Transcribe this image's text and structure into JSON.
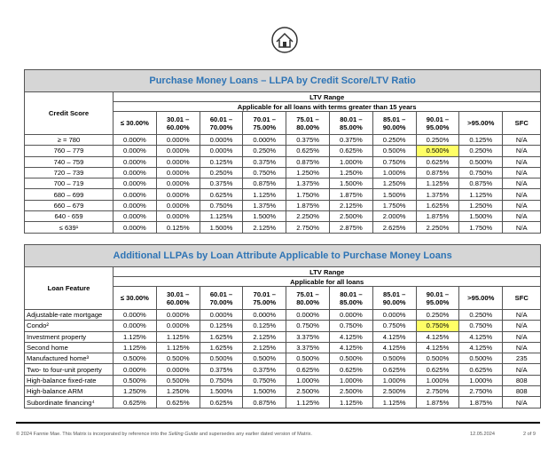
{
  "tables": [
    {
      "title": "Purchase Money Loans – LLPA by Credit Score/LTV Ratio",
      "row_header": "Credit Score",
      "group_header": "LTV Range",
      "group_subheader": "Applicable for all loans with terms greater than 15 years",
      "columns": [
        "≤ 30.00%",
        "30.01 – 60.00%",
        "60.01 – 70.00%",
        "70.01 – 75.00%",
        "75.01 – 80.00%",
        "80.01 – 85.00%",
        "85.01 – 90.00%",
        "90.01 – 95.00%",
        ">95.00%",
        "SFC"
      ],
      "rows": [
        {
          "label": "≥ = 780",
          "cells": [
            "0.000%",
            "0.000%",
            "0.000%",
            "0.000%",
            "0.375%",
            "0.375%",
            "0.250%",
            "0.250%",
            "0.125%",
            "N/A"
          ]
        },
        {
          "label": "760 – 779",
          "cells": [
            "0.000%",
            "0.000%",
            "0.000%",
            "0.250%",
            "0.625%",
            "0.625%",
            "0.500%",
            "0.500%",
            "0.250%",
            "N/A"
          ]
        },
        {
          "label": "740 – 759",
          "cells": [
            "0.000%",
            "0.000%",
            "0.125%",
            "0.375%",
            "0.875%",
            "1.000%",
            "0.750%",
            "0.625%",
            "0.500%",
            "N/A"
          ]
        },
        {
          "label": "720 – 739",
          "cells": [
            "0.000%",
            "0.000%",
            "0.250%",
            "0.750%",
            "1.250%",
            "1.250%",
            "1.000%",
            "0.875%",
            "0.750%",
            "N/A"
          ]
        },
        {
          "label": "700 – 719",
          "cells": [
            "0.000%",
            "0.000%",
            "0.375%",
            "0.875%",
            "1.375%",
            "1.500%",
            "1.250%",
            "1.125%",
            "0.875%",
            "N/A"
          ]
        },
        {
          "label": "680 – 699",
          "cells": [
            "0.000%",
            "0.000%",
            "0.625%",
            "1.125%",
            "1.750%",
            "1.875%",
            "1.500%",
            "1.375%",
            "1.125%",
            "N/A"
          ]
        },
        {
          "label": "660 – 679",
          "cells": [
            "0.000%",
            "0.000%",
            "0.750%",
            "1.375%",
            "1.875%",
            "2.125%",
            "1.750%",
            "1.625%",
            "1.250%",
            "N/A"
          ]
        },
        {
          "label": "640 - 659",
          "cells": [
            "0.000%",
            "0.000%",
            "1.125%",
            "1.500%",
            "2.250%",
            "2.500%",
            "2.000%",
            "1.875%",
            "1.500%",
            "N/A"
          ]
        },
        {
          "label": "≤ 639¹",
          "cells": [
            "0.000%",
            "0.125%",
            "1.500%",
            "2.125%",
            "2.750%",
            "2.875%",
            "2.625%",
            "2.250%",
            "1.750%",
            "N/A"
          ]
        }
      ],
      "highlighted_cell": [
        1,
        7
      ]
    },
    {
      "title": "Additional LLPAs by Loan Attribute Applicable to Purchase Money Loans",
      "row_header": "Loan Feature",
      "group_header": "LTV Range",
      "group_subheader": "Applicable for all loans",
      "columns": [
        "≤ 30.00%",
        "30.01 – 60.00%",
        "60.01 – 70.00%",
        "70.01 – 75.00%",
        "75.01 – 80.00%",
        "80.01 – 85.00%",
        "85.01 – 90.00%",
        "90.01 – 95.00%",
        ">95.00%",
        "SFC"
      ],
      "rows": [
        {
          "label": "Adjustable-rate mortgage",
          "cells": [
            "0.000%",
            "0.000%",
            "0.000%",
            "0.000%",
            "0.000%",
            "0.000%",
            "0.000%",
            "0.250%",
            "0.250%",
            "N/A"
          ]
        },
        {
          "label": "Condo²",
          "cells": [
            "0.000%",
            "0.000%",
            "0.125%",
            "0.125%",
            "0.750%",
            "0.750%",
            "0.750%",
            "0.750%",
            "0.750%",
            "N/A"
          ]
        },
        {
          "label": "Investment property",
          "cells": [
            "1.125%",
            "1.125%",
            "1.625%",
            "2.125%",
            "3.375%",
            "4.125%",
            "4.125%",
            "4.125%",
            "4.125%",
            "N/A"
          ]
        },
        {
          "label": "Second home",
          "cells": [
            "1.125%",
            "1.125%",
            "1.625%",
            "2.125%",
            "3.375%",
            "4.125%",
            "4.125%",
            "4.125%",
            "4.125%",
            "N/A"
          ]
        },
        {
          "label": "Manufactured home³",
          "cells": [
            "0.500%",
            "0.500%",
            "0.500%",
            "0.500%",
            "0.500%",
            "0.500%",
            "0.500%",
            "0.500%",
            "0.500%",
            "235"
          ]
        },
        {
          "label": "Two- to four-unit property",
          "cells": [
            "0.000%",
            "0.000%",
            "0.375%",
            "0.375%",
            "0.625%",
            "0.625%",
            "0.625%",
            "0.625%",
            "0.625%",
            "N/A"
          ]
        },
        {
          "label": "High-balance fixed-rate",
          "cells": [
            "0.500%",
            "0.500%",
            "0.750%",
            "0.750%",
            "1.000%",
            "1.000%",
            "1.000%",
            "1.000%",
            "1.000%",
            "808"
          ]
        },
        {
          "label": "High-balance ARM",
          "cells": [
            "1.250%",
            "1.250%",
            "1.500%",
            "1.500%",
            "2.500%",
            "2.500%",
            "2.500%",
            "2.750%",
            "2.750%",
            "808"
          ]
        },
        {
          "label": "Subordinate financing⁴",
          "cells": [
            "0.625%",
            "0.625%",
            "0.625%",
            "0.875%",
            "1.125%",
            "1.125%",
            "1.125%",
            "1.875%",
            "1.875%",
            "N/A"
          ]
        }
      ],
      "highlighted_cell": [
        1,
        7
      ]
    }
  ],
  "footer": {
    "text_parts": [
      "© 2024 Fannie Mae. This Matrix is incorporated by reference into the ",
      "Selling Guide",
      " and supersedes any earlier dated version of Matrix."
    ],
    "date": "12.05.2024",
    "page": "2 of 9"
  }
}
